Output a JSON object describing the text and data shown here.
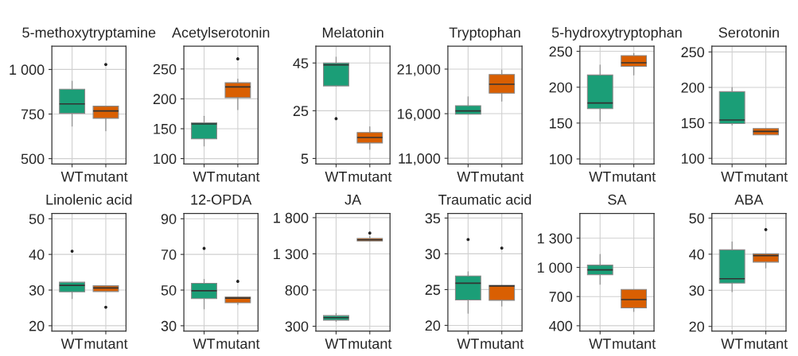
{
  "chart_data": [
    {
      "type": "box",
      "title": "5-methoxytryptamine",
      "categories": [
        "WT",
        "mutant"
      ],
      "colors": [
        "#1b9e77",
        "#d95f02"
      ],
      "ylim": [
        470,
        1130
      ],
      "yticks": [
        500,
        750,
        {
          "value": 1000,
          "label": "1 000"
        }
      ],
      "grid": true,
      "boxes": [
        {
          "low": 682,
          "q1": 754,
          "median": 807,
          "q3": 889,
          "high": 935
        },
        {
          "low": 656,
          "q1": 726,
          "median": 767,
          "q3": 794,
          "high": 794,
          "outliers": [
            1028
          ]
        }
      ]
    },
    {
      "type": "box",
      "title": "Acetylserotonin",
      "categories": [
        "WT",
        "mutant"
      ],
      "colors": [
        "#1b9e77",
        "#d95f02"
      ],
      "ylim": [
        91,
        288
      ],
      "yticks": [
        100,
        150,
        200,
        250
      ],
      "grid": true,
      "boxes": [
        {
          "low": 121,
          "q1": 133,
          "median": 158,
          "q3": 160,
          "high": 171
        },
        {
          "low": 182,
          "q1": 202,
          "median": 220,
          "q3": 227,
          "high": 233,
          "outliers": [
            267
          ]
        }
      ]
    },
    {
      "type": "box",
      "title": "Melatonin",
      "categories": [
        "WT",
        "mutant"
      ],
      "colors": [
        "#1b9e77",
        "#d95f02"
      ],
      "ylim": [
        2.7,
        52
      ],
      "yticks": [
        5,
        25,
        45
      ],
      "grid": true,
      "boxes": [
        {
          "low": 35.4,
          "q1": 35.4,
          "median": 44.2,
          "q3": 45,
          "high": 47.5,
          "outliers": [
            21.7
          ]
        },
        {
          "low": 8.8,
          "q1": 11.5,
          "median": 13.8,
          "q3": 15.9,
          "high": 18.3
        }
      ]
    },
    {
      "type": "box",
      "title": "Tryptophan",
      "categories": [
        "WT",
        "mutant"
      ],
      "colors": [
        "#1b9e77",
        "#d95f02"
      ],
      "ylim": [
        10360,
        23560
      ],
      "yticks": [
        {
          "value": 11000,
          "label": "11,000"
        },
        {
          "value": 16000,
          "label": "16,000"
        },
        {
          "value": 21000,
          "label": "21,000"
        }
      ],
      "grid": true,
      "boxes": [
        {
          "low": 15940,
          "q1": 15940,
          "median": 16300,
          "q3": 16900,
          "high": 17900
        },
        {
          "low": 17400,
          "q1": 18300,
          "median": 19300,
          "q3": 20400,
          "high": 20900
        }
      ]
    },
    {
      "type": "box",
      "title": "5-hydroxytryptophan",
      "categories": [
        "WT",
        "mutant"
      ],
      "colors": [
        "#1b9e77",
        "#d95f02"
      ],
      "ylim": [
        93,
        257
      ],
      "yticks": [
        100,
        150,
        200,
        250
      ],
      "grid": true,
      "boxes": [
        {
          "low": 153,
          "q1": 170,
          "median": 178,
          "q3": 217,
          "high": 231
        },
        {
          "low": 217,
          "q1": 229,
          "median": 234,
          "q3": 244,
          "high": 247
        }
      ]
    },
    {
      "type": "box",
      "title": "Serotonin",
      "categories": [
        "WT",
        "mutant"
      ],
      "colors": [
        "#1b9e77",
        "#d95f02"
      ],
      "ylim": [
        92,
        258
      ],
      "yticks": [
        100,
        150,
        200,
        250
      ],
      "grid": true,
      "boxes": [
        {
          "low": 147,
          "q1": 149,
          "median": 154,
          "q3": 194,
          "high": 200
        },
        {
          "low": 133,
          "q1": 133,
          "median": 138,
          "q3": 142,
          "high": 142
        }
      ]
    },
    {
      "type": "box",
      "title": "Linolenic acid",
      "categories": [
        "WT",
        "mutant"
      ],
      "colors": [
        "#1b9e77",
        "#d95f02"
      ],
      "ylim": [
        18.5,
        51.5
      ],
      "yticks": [
        20,
        30,
        40,
        50
      ],
      "grid": true,
      "boxes": [
        {
          "low": 27.6,
          "q1": 29.5,
          "median": 31.3,
          "q3": 32.2,
          "high": 32.2,
          "outliers": [
            40.9
          ]
        },
        {
          "low": 29.6,
          "q1": 29.6,
          "median": 30.6,
          "q3": 31.2,
          "high": 31.2,
          "outliers": [
            25.2
          ]
        }
      ]
    },
    {
      "type": "box",
      "title": "12-OPDA",
      "categories": [
        "WT",
        "mutant"
      ],
      "colors": [
        "#1b9e77",
        "#d95f02"
      ],
      "ylim": [
        27,
        93
      ],
      "yticks": [
        30,
        50,
        70,
        90
      ],
      "grid": true,
      "boxes": [
        {
          "low": 39.4,
          "q1": 45.2,
          "median": 49.6,
          "q3": 53.8,
          "high": 56,
          "outliers": [
            73.4
          ]
        },
        {
          "low": 41.9,
          "q1": 42.9,
          "median": 45.5,
          "q3": 46.1,
          "high": 46.1,
          "outliers": [
            54.9
          ]
        }
      ]
    },
    {
      "type": "box",
      "title": "JA",
      "categories": [
        "WT",
        "mutant"
      ],
      "colors": [
        "#1b9e77",
        "#d95f02"
      ],
      "ylim": [
        233,
        1859
      ],
      "yticks": [
        300,
        800,
        {
          "value": 1300,
          "label": "1 300"
        },
        {
          "value": 1800,
          "label": "1 800"
        }
      ],
      "grid": true,
      "boxes": [
        {
          "low": 366,
          "q1": 384,
          "median": 418,
          "q3": 447,
          "high": 477
        },
        {
          "low": 1479,
          "q1": 1479,
          "median": 1494,
          "q3": 1513,
          "high": 1540,
          "outliers": [
            1587
          ]
        }
      ]
    },
    {
      "type": "box",
      "title": "Traumatic acid",
      "categories": [
        "WT",
        "mutant"
      ],
      "colors": [
        "#1b9e77",
        "#d95f02"
      ],
      "ylim": [
        19.2,
        35.65
      ],
      "yticks": [
        20,
        25,
        30,
        35
      ],
      "grid": true,
      "boxes": [
        {
          "low": 21.7,
          "q1": 23.55,
          "median": 25.9,
          "q3": 26.9,
          "high": 27.5,
          "outliers": [
            32
          ]
        },
        {
          "low": 22.7,
          "q1": 23.5,
          "median": 25.5,
          "q3": 25.6,
          "high": 25.6,
          "outliers": [
            30.8
          ]
        }
      ]
    },
    {
      "type": "box",
      "title": "SA",
      "categories": [
        "WT",
        "mutant"
      ],
      "colors": [
        "#1b9e77",
        "#d95f02"
      ],
      "ylim": [
        345,
        1555
      ],
      "yticks": [
        400,
        700,
        {
          "value": 1000,
          "label": "1 000"
        },
        {
          "value": 1300,
          "label": "1 300"
        }
      ],
      "grid": true,
      "boxes": [
        {
          "low": 826,
          "q1": 925,
          "median": 974,
          "q3": 1023,
          "high": 1135
        },
        {
          "low": 547,
          "q1": 583,
          "median": 669,
          "q3": 773,
          "high": 773
        }
      ]
    },
    {
      "type": "box",
      "title": "ABA",
      "categories": [
        "WT",
        "mutant"
      ],
      "colors": [
        "#1b9e77",
        "#d95f02"
      ],
      "ylim": [
        18.7,
        51.3
      ],
      "yticks": [
        20,
        30,
        40,
        50
      ],
      "grid": true,
      "boxes": [
        {
          "low": 29.6,
          "q1": 32,
          "median": 33.2,
          "q3": 41.2,
          "high": 43.4
        },
        {
          "low": 36.2,
          "q1": 37.8,
          "median": 39.6,
          "q3": 40.1,
          "high": 40.1,
          "outliers": [
            46.8
          ]
        }
      ]
    }
  ]
}
